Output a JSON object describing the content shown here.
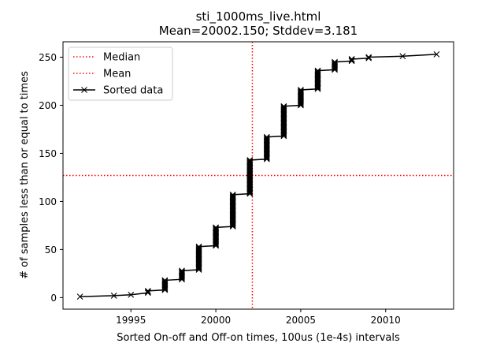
{
  "chart_data": {
    "type": "line",
    "title": "sti_1000ms_live.html",
    "subtitle": "Mean=20002.150; Stddev=3.181",
    "xlabel": "Sorted On-off and Off-on times, 100us (1e-4s) intervals",
    "ylabel": "# of samples less than or equal to times",
    "xlim": [
      19991.0,
      20014.0
    ],
    "ylim": [
      -12.0,
      266.0
    ],
    "x_ticks": [
      19995,
      20000,
      20005,
      20010
    ],
    "y_ticks": [
      0,
      50,
      100,
      150,
      200,
      250
    ],
    "grid": false,
    "legend_position": "upper-left",
    "legend": [
      {
        "label": "Median",
        "style": "dotted",
        "color": "#ff0000"
      },
      {
        "label": "Mean",
        "style": "dotted",
        "color": "#ff0000"
      },
      {
        "label": "Sorted data",
        "style": "solid-x",
        "color": "#000000"
      }
    ],
    "reference_lines": [
      {
        "name": "Median",
        "orientation": "vertical",
        "value": 20002.15
      },
      {
        "name": "Mean",
        "orientation": "horizontal",
        "value": 127
      }
    ],
    "series": [
      {
        "name": "Sorted data",
        "steps": [
          {
            "x": 19992,
            "from": 1,
            "to": 1
          },
          {
            "x": 19994,
            "from": 2,
            "to": 2
          },
          {
            "x": 19995,
            "from": 3,
            "to": 3
          },
          {
            "x": 19996,
            "from": 5,
            "to": 7
          },
          {
            "x": 19997,
            "from": 8,
            "to": 18
          },
          {
            "x": 19998,
            "from": 19,
            "to": 28
          },
          {
            "x": 19999,
            "from": 29,
            "to": 53
          },
          {
            "x": 20000,
            "from": 54,
            "to": 73
          },
          {
            "x": 20001,
            "from": 74,
            "to": 107
          },
          {
            "x": 20002,
            "from": 108,
            "to": 143
          },
          {
            "x": 20003,
            "from": 144,
            "to": 167
          },
          {
            "x": 20004,
            "from": 168,
            "to": 199
          },
          {
            "x": 20005,
            "from": 200,
            "to": 216
          },
          {
            "x": 20006,
            "from": 217,
            "to": 236
          },
          {
            "x": 20007,
            "from": 237,
            "to": 245
          },
          {
            "x": 20008,
            "from": 246,
            "to": 248
          },
          {
            "x": 20009,
            "from": 249,
            "to": 250
          },
          {
            "x": 20011,
            "from": 251,
            "to": 251
          },
          {
            "x": 20013,
            "from": 253,
            "to": 253
          }
        ]
      }
    ]
  }
}
